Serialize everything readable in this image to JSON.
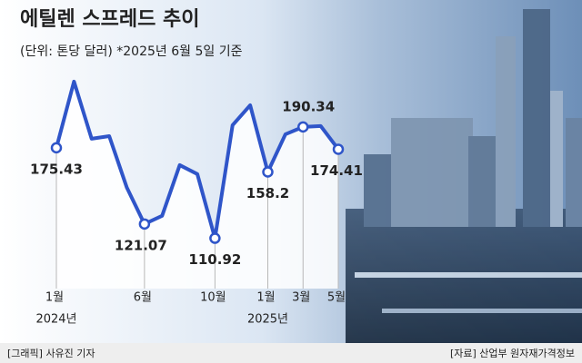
{
  "chart_data": {
    "type": "line",
    "title": "에틸렌 스프레드 추이",
    "subtitle": "(단위: 톤당 달러) *2025년 6월 5일 기준",
    "categories": [
      "1월",
      null,
      null,
      null,
      null,
      "6월",
      null,
      null,
      null,
      "10월",
      null,
      null,
      "1월",
      null,
      "3월",
      null,
      "5월"
    ],
    "year_labels": [
      "2024년",
      null,
      null,
      null,
      null,
      null,
      null,
      null,
      null,
      null,
      null,
      null,
      "2025년",
      null,
      null,
      null,
      null
    ],
    "series": [
      {
        "name": "에틸렌 스프레드",
        "color": "#2f55c9",
        "values": [
          175.43,
          222.7,
          181.9,
          183.8,
          147.0,
          121.07,
          126.9,
          163.1,
          156.7,
          110.92,
          191.6,
          205.8,
          158.2,
          185.1,
          190.34,
          191.0,
          174.41
        ],
        "value_labels": [
          "175.43",
          null,
          null,
          null,
          null,
          "121.07",
          null,
          null,
          null,
          "110.92",
          null,
          null,
          "158.2",
          null,
          "190.34",
          null,
          "174.41"
        ]
      }
    ],
    "ylim": [
      75,
      255
    ],
    "footer_left": "[그래픽] 사유진 기자",
    "footer_right": "[자료] 산업부 원자재가격정보"
  }
}
